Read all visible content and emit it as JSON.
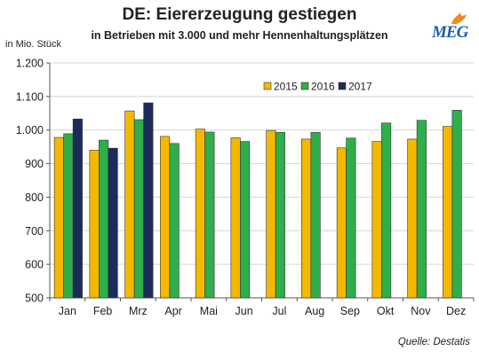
{
  "chart_data": {
    "type": "bar",
    "title": "DE: Eiererzeugung gestiegen",
    "subtitle": "in Betrieben mit 3.000 und mehr Hennenhaltungsplätzen",
    "ylabel": "in Mio. Stück",
    "ylim": [
      500,
      1200
    ],
    "yticks": [
      500,
      600,
      700,
      800,
      900,
      1000,
      1100,
      1200
    ],
    "ytick_labels": [
      "500",
      "600",
      "700",
      "800",
      "900",
      "1.000",
      "1.100",
      "1.200"
    ],
    "categories": [
      "Jan",
      "Feb",
      "Mrz",
      "Apr",
      "Mai",
      "Jun",
      "Jul",
      "Aug",
      "Sep",
      "Okt",
      "Nov",
      "Dez"
    ],
    "series": [
      {
        "name": "2015",
        "color": "#f5b800",
        "values": [
          978,
          940,
          1057,
          981,
          1003,
          977,
          999,
          973,
          947,
          966,
          973,
          1011
        ]
      },
      {
        "name": "2016",
        "color": "#2fae4a",
        "values": [
          989,
          970,
          1031,
          960,
          994,
          966,
          993,
          993,
          976,
          1021,
          1029,
          1059
        ]
      },
      {
        "name": "2017",
        "color": "#1c2b5a",
        "values": [
          1033,
          946,
          1081,
          null,
          null,
          null,
          null,
          null,
          null,
          null,
          null,
          null
        ]
      }
    ],
    "grid": true,
    "legend_position": "top-right",
    "source": "Quelle: Destatis"
  },
  "logo": {
    "text": "MEG",
    "color": "#1f5fa8",
    "flame_color": "#f08a1c"
  }
}
